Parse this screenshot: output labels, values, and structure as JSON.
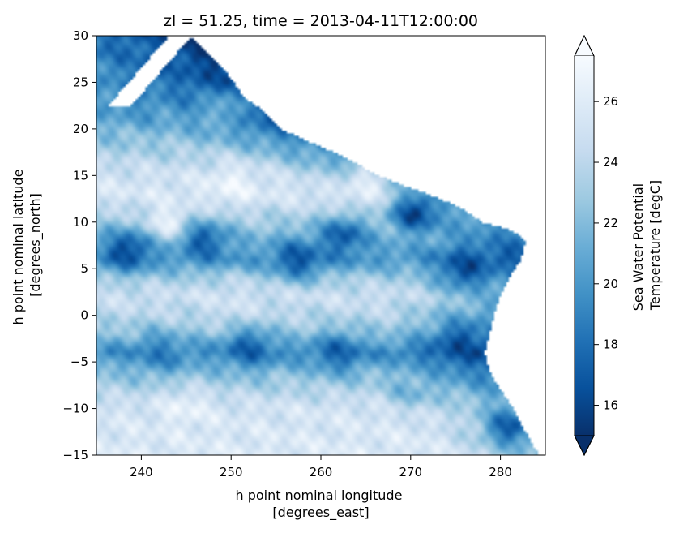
{
  "chart_data": {
    "type": "heatmap",
    "title": "zl = 51.25, time = 2013-04-11T12:00:00",
    "xlabel": [
      "h point nominal longitude",
      "[degrees_east]"
    ],
    "ylabel": [
      "h point nominal latitude",
      "[degrees_north]"
    ],
    "xlim": [
      235,
      285
    ],
    "ylim": [
      -15,
      30
    ],
    "xticks": [
      240,
      250,
      260,
      270,
      280
    ],
    "yticks": [
      -15,
      -10,
      -5,
      0,
      5,
      10,
      15,
      20,
      25,
      30
    ],
    "colorbar": {
      "label": [
        "Sea Water Potential",
        "Temperature [degC]"
      ],
      "ticks": [
        16,
        18,
        20,
        22,
        24,
        26
      ],
      "range": [
        15,
        27.5
      ],
      "extend": "both",
      "colormap": "Blues_r",
      "color_low": "#08306b",
      "color_high": "#f7fbff"
    },
    "land_color": "#ffffff",
    "grid": false,
    "features": [
      {
        "lon": 243,
        "lat": 10,
        "value": 26.8
      },
      {
        "lon": 238.5,
        "lat": 7,
        "value": 16.2
      },
      {
        "lon": 247,
        "lat": 8,
        "value": 17.2
      },
      {
        "lon": 257.5,
        "lat": 6,
        "value": 16.8
      },
      {
        "lon": 262.5,
        "lat": 8.5,
        "value": 17.0
      },
      {
        "lon": 270.5,
        "lat": 11,
        "value": 15.8
      },
      {
        "lon": 276,
        "lat": 5,
        "value": 16.4
      },
      {
        "lon": 275.5,
        "lat": -3,
        "value": 16.6
      },
      {
        "lon": 252,
        "lat": -3.5,
        "value": 17.4
      },
      {
        "lon": 242,
        "lat": -4,
        "value": 18.8
      },
      {
        "lon": 262,
        "lat": -4,
        "value": 17.6
      },
      {
        "lon": 250,
        "lat": 14,
        "value": 26.8
      },
      {
        "lon": 265,
        "lat": 14,
        "value": 26.2
      },
      {
        "lon": 250,
        "lat": 1.5,
        "value": 25.0
      },
      {
        "lon": 245,
        "lat": -10,
        "value": 26.5
      },
      {
        "lon": 240,
        "lat": 23,
        "value": 19.5
      },
      {
        "lon": 241,
        "lat": 28,
        "value": 17.8
      },
      {
        "lon": 249,
        "lat": 22,
        "value": 21.5
      },
      {
        "lon": 270,
        "lat": -8,
        "value": 21.5
      },
      {
        "lon": 281,
        "lat": -12,
        "value": 17.0
      }
    ]
  }
}
